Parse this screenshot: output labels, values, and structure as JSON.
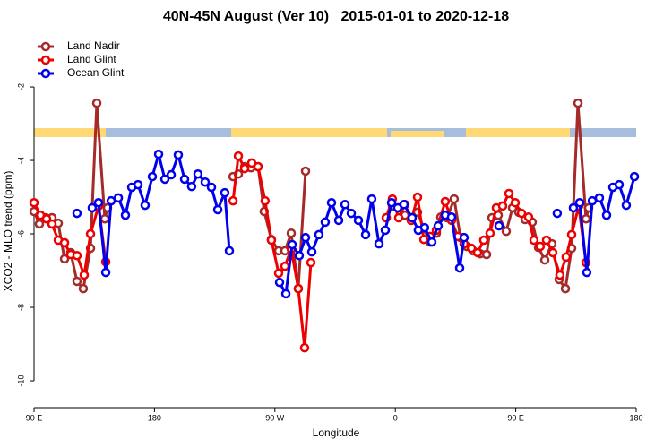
{
  "chart_data": {
    "type": "line",
    "title": "40N-45N August (Ver 10)   2015-01-01 to 2020-12-18",
    "x_label": "Longitude",
    "y_label": "XCO2 - MLO trend (ppm)",
    "xlim": [
      90,
      540
    ],
    "xticks": [
      {
        "value": 90,
        "label": "90 E"
      },
      {
        "value": 180,
        "label": "180"
      },
      {
        "value": 270,
        "label": "90 W"
      },
      {
        "value": 360,
        "label": "0"
      },
      {
        "value": 450,
        "label": "90 E"
      },
      {
        "value": 540,
        "label": "180"
      }
    ],
    "ylim": [
      -10.75,
      -0.35
    ],
    "yticks": [
      -2,
      -4,
      -6,
      -8,
      -10
    ],
    "legend": "topleft",
    "series": [
      {
        "name": "Land Nadir",
        "color": "#a52a2a",
        "x": [
          90,
          94,
          98.7,
          103.4,
          108.1,
          112.8,
          117.4,
          122.1,
          126.8,
          132.2,
          136.9,
          142.9,
          144.9,
          null,
          238.7,
          242.7,
          247.4,
          252.1,
          257.4,
          262,
          267.4,
          272.8,
          277.5,
          282.2,
          287.5,
          292.9,
          null,
          353.2,
          357.8,
          362.5,
          367.2,
          371.9,
          376.6,
          381.3,
          386,
          390.7,
          394,
          398.7,
          404,
          408.7,
          413.4,
          418.1,
          423.5,
          428.2,
          432.2,
          436.9,
          442.9,
          447.6,
          452.3,
          457,
          462.3,
          467,
          471.7,
          477,
          482.4,
          487.1,
          491.8,
          496.5,
          502.5,
          504.5
        ],
        "values": [
          -5.39,
          -5.73,
          -5.56,
          -5.56,
          -5.71,
          -6.68,
          -6.51,
          -7.29,
          -7.49,
          -6.39,
          -2.44,
          -5.59,
          -5.29,
          null,
          -4.44,
          -4.37,
          -4.17,
          -4.2,
          -4.17,
          -5.39,
          -6.15,
          -6.46,
          -6.46,
          -5.98,
          -7.49,
          -4.29,
          null,
          -5.56,
          -5.24,
          -5.29,
          -5.49,
          -5.63,
          -5.41,
          -5.85,
          -6.22,
          -5.98,
          -5.54,
          -5.56,
          -5.05,
          -6.1,
          -6.34,
          -6.46,
          -6.54,
          -6.56,
          -5.56,
          -5.49,
          -5.93,
          -5.29,
          -5.41,
          -5.61,
          -5.68,
          -6.37,
          -6.71,
          -6.27,
          -7.24,
          -7.49,
          -6.39,
          -2.44,
          -5.59,
          -5.29
        ]
      },
      {
        "name": "Land Glint",
        "color": "#ee0000",
        "x": [
          90,
          94.7,
          99.4,
          103.4,
          108.1,
          112.8,
          117.4,
          122.1,
          127.5,
          132.2,
          138.2,
          143.6,
          null,
          238.7,
          242.7,
          247.4,
          252.7,
          257.4,
          262.7,
          267.4,
          272.8,
          277.5,
          282.2,
          287.5,
          292.2,
          296.9,
          null,
          353.2,
          357.8,
          362.5,
          367.2,
          371.9,
          376.6,
          381.3,
          386,
          390.7,
          397.3,
          402,
          406.7,
          411.4,
          416.8,
          421.5,
          426.1,
          430.8,
          435.5,
          440.2,
          444.9,
          449.6,
          454.3,
          459.6,
          463.6,
          468.3,
          473,
          477.7,
          483,
          487.7,
          491.8,
          497.1,
          502.5
        ],
        "values": [
          -5.15,
          -5.49,
          -5.59,
          -5.73,
          -6.17,
          -6.24,
          -6.56,
          -6.59,
          -7.12,
          -6,
          -5.24,
          -6.76,
          null,
          -5.1,
          -3.88,
          -4.22,
          -4.07,
          -4.17,
          -5.1,
          -6.17,
          -7.07,
          -6.88,
          -6.41,
          -7.49,
          -9.1,
          -6.78,
          null,
          -5.56,
          -5.05,
          -5.56,
          -5.2,
          -5.63,
          -5,
          -6.15,
          -6.07,
          -5.9,
          -5.12,
          -5.63,
          -6.07,
          -6.27,
          -6.39,
          -6.51,
          -6.17,
          -5.98,
          -5.29,
          -5.24,
          -4.9,
          -5.15,
          -5.44,
          -5.54,
          -6.17,
          -6.34,
          -6.17,
          -6.51,
          -7.12,
          -6.63,
          -6.02,
          -5.24,
          -6.78
        ]
      },
      {
        "name": "Ocean Glint",
        "color": "#0000ee",
        "x": [
          122.1,
          null,
          133.5,
          138.2,
          143.6,
          147.6,
          153,
          158.3,
          163,
          167.7,
          173,
          178.4,
          183.1,
          187.8,
          192.5,
          197.8,
          202.5,
          207.8,
          212.5,
          217.9,
          222.6,
          227.3,
          232.6,
          236,
          null,
          273.5,
          278.2,
          282.9,
          288.2,
          292.9,
          297.6,
          302.9,
          307.6,
          312.3,
          317.7,
          322.4,
          327.1,
          332.4,
          337.8,
          342.4,
          347.8,
          352.5,
          357.2,
          361.8,
          366.5,
          372.6,
          377.2,
          381.9,
          387.3,
          392,
          397.3,
          402,
          408.1,
          411.4,
          null,
          437.5,
          null,
          481,
          null,
          493.1,
          497.8,
          503.1,
          507.2,
          512.5,
          517.9,
          522.6,
          527.3,
          532.6,
          538.7
        ],
        "values": [
          -5.44,
          null,
          -5.29,
          -5.15,
          -7.05,
          -5.1,
          -5.02,
          -5.49,
          -4.73,
          -4.66,
          -5.22,
          -4.44,
          -3.83,
          -4.51,
          -4.39,
          -3.85,
          -4.51,
          -4.71,
          -4.37,
          -4.59,
          -4.73,
          -5.34,
          -4.88,
          -6.46,
          null,
          -7.32,
          -7.63,
          -6.29,
          -6.59,
          -6.1,
          -6.49,
          -6.02,
          -5.68,
          -5.15,
          -5.63,
          -5.2,
          -5.44,
          -5.63,
          -6.02,
          -5.05,
          -6.27,
          -5.9,
          -5.15,
          -5.29,
          -5.2,
          -5.56,
          -5.9,
          -5.83,
          -6.22,
          -5.78,
          -5.49,
          -5.54,
          -6.93,
          -6.1,
          null,
          -5.78,
          null,
          -5.44,
          null,
          -5.29,
          -5.15,
          -7.05,
          -5.1,
          -5.02,
          -5.49,
          -4.73,
          -4.66,
          -5.22,
          -4.44
        ]
      }
    ]
  }
}
